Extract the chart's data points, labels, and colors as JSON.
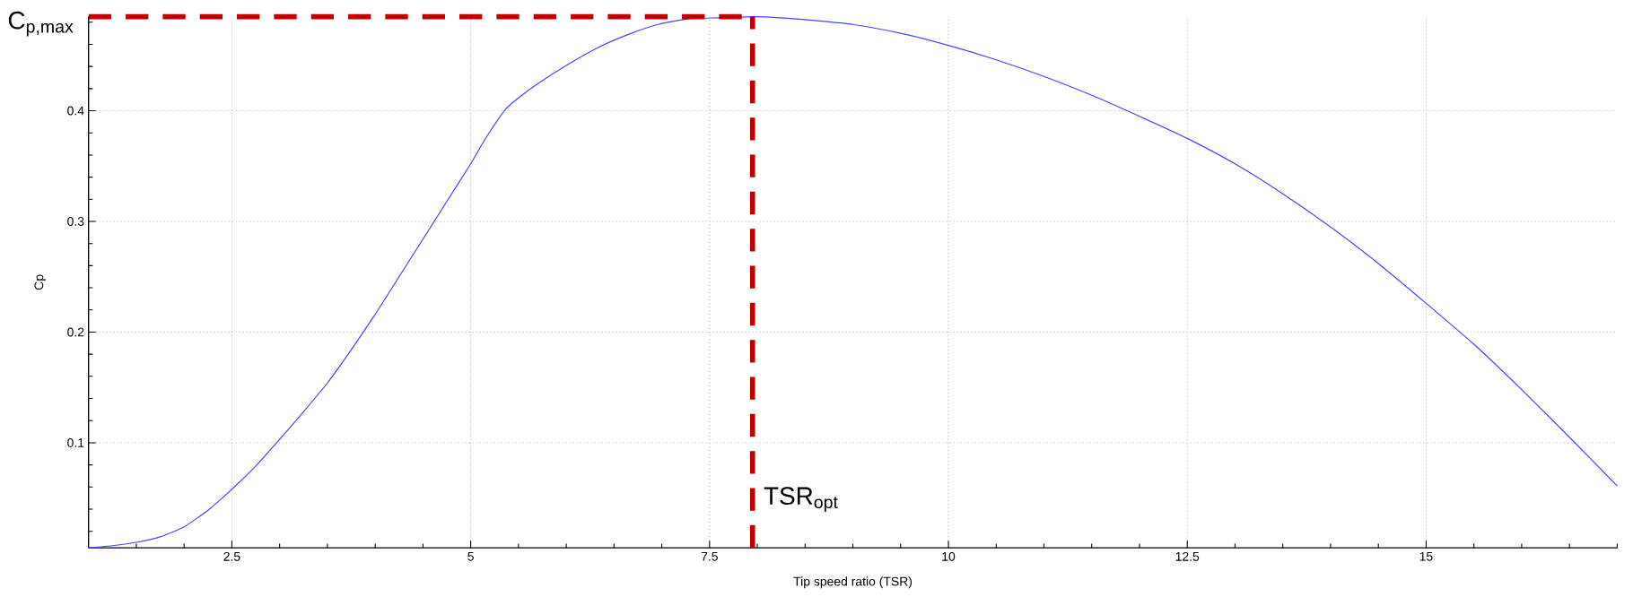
{
  "chart_data": {
    "type": "line",
    "xlabel": "Tip speed ratio (TSR)",
    "ylabel": "Cp",
    "x": [
      1,
      1.25,
      1.5,
      1.75,
      2,
      2.25,
      2.5,
      2.75,
      3,
      3.25,
      3.5,
      3.75,
      4,
      4.25,
      4.5,
      4.75,
      5,
      5.1,
      5.2,
      5.36,
      5.49,
      5.71,
      6.02,
      6.33,
      6.65,
      6.96,
      7.27,
      7.59,
      7.95,
      8.25,
      8.68,
      9,
      9.5,
      10,
      10.5,
      11,
      11.5,
      12,
      12.5,
      13,
      13.5,
      14,
      14.5,
      15,
      15.5,
      16,
      16.5,
      17
    ],
    "values": [
      0.005,
      0.007,
      0.01,
      0.015,
      0.024,
      0.039,
      0.058,
      0.079,
      0.103,
      0.128,
      0.154,
      0.184,
      0.216,
      0.25,
      0.284,
      0.318,
      0.352,
      0.367,
      0.381,
      0.401,
      0.411,
      0.425,
      0.442,
      0.457,
      0.469,
      0.478,
      0.483,
      0.484,
      0.485,
      0.484,
      0.481,
      0.478,
      0.47,
      0.459,
      0.446,
      0.431,
      0.414,
      0.395,
      0.375,
      0.352,
      0.325,
      0.295,
      0.262,
      0.226,
      0.189,
      0.148,
      0.105,
      0.061
    ],
    "color": "#4646ff",
    "xlim": [
      1,
      17
    ],
    "ylim": [
      0.005,
      0.485
    ],
    "xticks": [
      {
        "value": 1.5,
        "label": null
      },
      {
        "value": 2,
        "label": null
      },
      2.5,
      {
        "value": 3,
        "label": null
      },
      {
        "value": 3.5,
        "label": null
      },
      {
        "value": 4,
        "label": null
      },
      {
        "value": 4.5,
        "label": null
      },
      5,
      {
        "value": 5.5,
        "label": null
      },
      {
        "value": 6,
        "label": null
      },
      {
        "value": 6.5,
        "label": null
      },
      {
        "value": 7,
        "label": null
      },
      7.5,
      {
        "value": 8,
        "label": null
      },
      {
        "value": 8.5,
        "label": null
      },
      {
        "value": 9,
        "label": null
      },
      {
        "value": 9.5,
        "label": null
      },
      10,
      {
        "value": 10.5,
        "label": null
      },
      {
        "value": 11,
        "label": null
      },
      {
        "value": 11.5,
        "label": null
      },
      {
        "value": 12,
        "label": null
      },
      12.5,
      {
        "value": 13,
        "label": null
      },
      {
        "value": 13.5,
        "label": null
      },
      {
        "value": 14,
        "label": null
      },
      {
        "value": 14.5,
        "label": null
      },
      15,
      {
        "value": 15.5,
        "label": null
      },
      {
        "value": 16,
        "label": null
      },
      {
        "value": 16.5,
        "label": null
      },
      {
        "value": 17,
        "label": null
      }
    ],
    "yticks": [
      {
        "value": 0.02,
        "label": null
      },
      {
        "value": 0.04,
        "label": null
      },
      {
        "value": 0.06,
        "label": null
      },
      {
        "value": 0.08,
        "label": null
      },
      0.1,
      {
        "value": 0.12,
        "label": null
      },
      {
        "value": 0.14,
        "label": null
      },
      {
        "value": 0.16,
        "label": null
      },
      {
        "value": 0.18,
        "label": null
      },
      0.2,
      {
        "value": 0.22,
        "label": null
      },
      {
        "value": 0.24,
        "label": null
      },
      {
        "value": 0.26,
        "label": null
      },
      {
        "value": 0.28,
        "label": null
      },
      0.3,
      {
        "value": 0.32,
        "label": null
      },
      {
        "value": 0.34,
        "label": null
      },
      {
        "value": 0.36,
        "label": null
      },
      {
        "value": 0.38,
        "label": null
      },
      0.4,
      {
        "value": 0.42,
        "label": null
      },
      {
        "value": 0.44,
        "label": null
      },
      {
        "value": 0.46,
        "label": null
      },
      {
        "value": 0.48,
        "label": null
      }
    ],
    "grid": true,
    "ref_lines": [
      {
        "axis": "y",
        "value": 0.485,
        "label": "C$_{p,max}$",
        "color": "#c00000",
        "line_style": "dashed"
      },
      {
        "axis": "x",
        "value": 7.95,
        "label": "TSR$_{opt}$",
        "color": "#c00000",
        "line_style": "dashed"
      }
    ]
  }
}
